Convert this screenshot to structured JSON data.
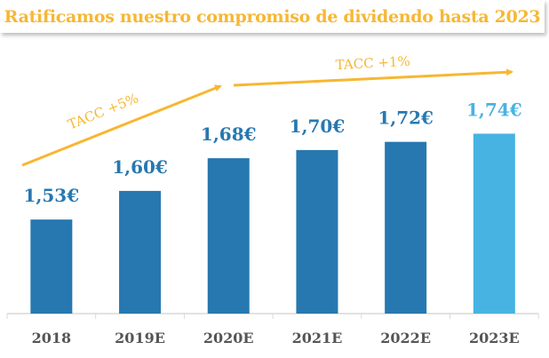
{
  "chart_data": {
    "type": "bar",
    "title": "Ratificamos nuestro compromiso de dividendo hasta 2023",
    "categories": [
      "2018",
      "2019E",
      "2020E",
      "2021E",
      "2022E",
      "2023E"
    ],
    "values": [
      1.53,
      1.6,
      1.68,
      1.7,
      1.72,
      1.74
    ],
    "data_labels": [
      "1,53€",
      "1,60€",
      "1,68€",
      "1,70€",
      "1,72€",
      "1,74€"
    ],
    "ylim": [
      1.3,
      1.98
    ],
    "grid": false,
    "colors": {
      "bar": "#2778b0",
      "highlight": "#47b3e2",
      "accent": "#f7b733",
      "tick": "#555555"
    },
    "annotations": [
      {
        "text": "TACC +5%",
        "from": "2018",
        "to": "2020E"
      },
      {
        "text": "TACC +1%",
        "from": "2020E",
        "to": "2023E"
      }
    ]
  }
}
